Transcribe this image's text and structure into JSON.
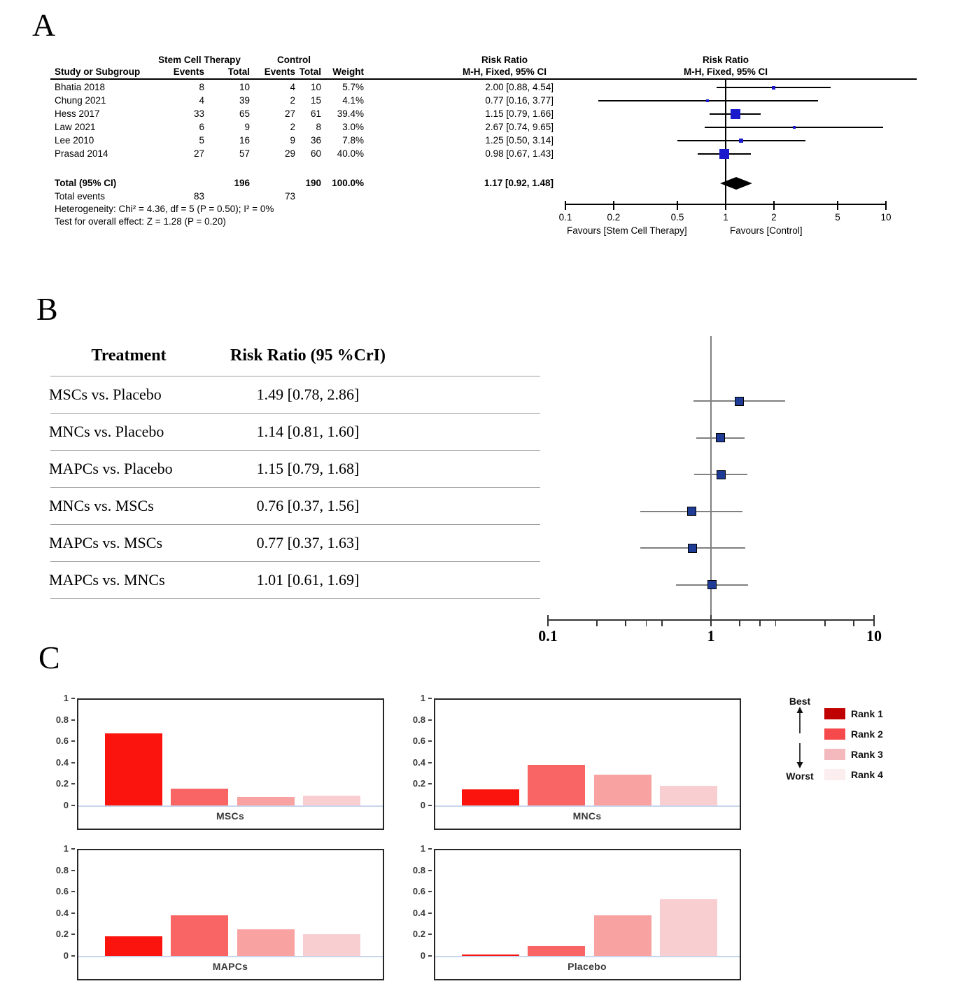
{
  "panelA": {
    "label": "A",
    "headers": {
      "group_treatment": "Stem Cell Therapy",
      "group_control": "Control",
      "risk_ratio": "Risk Ratio",
      "study": "Study or Subgroup",
      "events": "Events",
      "total": "Total",
      "weight": "Weight",
      "method": "M-H, Fixed, 95% CI"
    },
    "studies": [
      {
        "name": "Bhatia 2018",
        "events_t": "8",
        "total_t": "10",
        "events_c": "4",
        "total_c": "10",
        "weight": "5.7%",
        "rr_text": "2.00 [0.88, 4.54]"
      },
      {
        "name": "Chung 2021",
        "events_t": "4",
        "total_t": "39",
        "events_c": "2",
        "total_c": "15",
        "weight": "4.1%",
        "rr_text": "0.77 [0.16, 3.77]"
      },
      {
        "name": "Hess 2017",
        "events_t": "33",
        "total_t": "65",
        "events_c": "27",
        "total_c": "61",
        "weight": "39.4%",
        "rr_text": "1.15 [0.79, 1.66]"
      },
      {
        "name": "Law 2021",
        "events_t": "6",
        "total_t": "9",
        "events_c": "2",
        "total_c": "8",
        "weight": "3.0%",
        "rr_text": "2.67 [0.74, 9.65]"
      },
      {
        "name": "Lee 2010",
        "events_t": "5",
        "total_t": "16",
        "events_c": "9",
        "total_c": "36",
        "weight": "7.8%",
        "rr_text": "1.25 [0.50, 3.14]"
      },
      {
        "name": "Prasad 2014",
        "events_t": "27",
        "total_t": "57",
        "events_c": "29",
        "total_c": "60",
        "weight": "40.0%",
        "rr_text": "0.98 [0.67, 1.43]"
      }
    ],
    "total_row": {
      "label": "Total (95% CI)",
      "total_t": "196",
      "total_c": "190",
      "weight": "100.0%",
      "rr_text": "1.17 [0.92, 1.48]"
    },
    "total_events": {
      "label": "Total events",
      "treatment": "83",
      "control": "73"
    },
    "heterogeneity": "Heterogeneity: Chi² = 4.36, df = 5 (P = 0.50); I² = 0%",
    "overall_effect": "Test for overall effect: Z = 1.28 (P = 0.20)",
    "favours_left": "Favours [Stem Cell Therapy]",
    "favours_right": "Favours [Control]",
    "axis_ticks": [
      {
        "v": 0.1,
        "label": "0.1"
      },
      {
        "v": 0.2,
        "label": "0.2"
      },
      {
        "v": 0.5,
        "label": "0.5"
      },
      {
        "v": 1,
        "label": "1"
      },
      {
        "v": 2,
        "label": "2"
      },
      {
        "v": 5,
        "label": "5"
      },
      {
        "v": 10,
        "label": "10"
      }
    ]
  },
  "panelB": {
    "label": "B",
    "headers": {
      "treatment": "Treatment",
      "risk_ratio": "Risk Ratio (95 %CrI)"
    },
    "rows": [
      {
        "treatment": "MSCs vs. Placebo",
        "text": "1.49 [0.78, 2.86]"
      },
      {
        "treatment": "MNCs vs. Placebo",
        "text": "1.14 [0.81, 1.60]"
      },
      {
        "treatment": "MAPCs vs. Placebo",
        "text": "1.15 [0.79, 1.68]"
      },
      {
        "treatment": "MNCs vs. MSCs",
        "text": "0.76 [0.37, 1.56]"
      },
      {
        "treatment": "MAPCs vs. MSCs",
        "text": "0.77 [0.37, 1.63]"
      },
      {
        "treatment": "MAPCs vs. MNCs",
        "text": "1.01 [0.61, 1.69]"
      }
    ],
    "axis_major": [
      {
        "v": 0.1,
        "label": "0.1"
      },
      {
        "v": 1,
        "label": "1"
      },
      {
        "v": 10,
        "label": "10"
      }
    ],
    "axis_minor": [
      0.2,
      0.3,
      0.4,
      0.5,
      1.5,
      2,
      2.5,
      5,
      7.5
    ]
  },
  "panelC": {
    "label": "C",
    "yticks": [
      {
        "v": 1,
        "label": "1"
      },
      {
        "v": 0.8,
        "label": "0.8"
      },
      {
        "v": 0.6,
        "label": "0.6"
      },
      {
        "v": 0.4,
        "label": "0.4"
      },
      {
        "v": 0.2,
        "label": "0.2"
      },
      {
        "v": 0,
        "label": "0"
      }
    ],
    "bar_colors": [
      "#FB140E",
      "#F96565",
      "#F8A2A2",
      "#F9CED1"
    ],
    "legend": {
      "best": "Best",
      "worst": "Worst",
      "ranks": [
        {
          "label": "Rank 1",
          "color": "#C00000"
        },
        {
          "label": "Rank 2",
          "color": "#F5494B"
        },
        {
          "label": "Rank 3",
          "color": "#F3B9BD"
        },
        {
          "label": "Rank 4",
          "color": "#FCEDEE"
        }
      ]
    }
  },
  "colors": {
    "a_square": "#1A1ACC",
    "b_square": "#1E3C96",
    "b_ci": "#808080",
    "b_axis": "#333333",
    "baseline": "#C9D7EC",
    "rule": "#A0A0A0",
    "frame": "#262626"
  },
  "chart_data": [
    {
      "type": "forest",
      "panel": "A",
      "title": "Risk Ratio",
      "subtitle": "M-H, Fixed, 95% CI",
      "x_scale": "log10",
      "x_ticks": [
        0.1,
        0.2,
        0.5,
        1,
        2,
        5,
        10
      ],
      "studies": [
        {
          "study": "Bhatia 2018",
          "events_t": 8,
          "total_t": 10,
          "events_c": 4,
          "total_c": 10,
          "weight_pct": 5.7,
          "rr": 2.0,
          "ci_low": 0.88,
          "ci_high": 4.54
        },
        {
          "study": "Chung 2021",
          "events_t": 4,
          "total_t": 39,
          "events_c": 2,
          "total_c": 15,
          "weight_pct": 4.1,
          "rr": 0.77,
          "ci_low": 0.16,
          "ci_high": 3.77
        },
        {
          "study": "Hess 2017",
          "events_t": 33,
          "total_t": 65,
          "events_c": 27,
          "total_c": 61,
          "weight_pct": 39.4,
          "rr": 1.15,
          "ci_low": 0.79,
          "ci_high": 1.66
        },
        {
          "study": "Law 2021",
          "events_t": 6,
          "total_t": 9,
          "events_c": 2,
          "total_c": 8,
          "weight_pct": 3.0,
          "rr": 2.67,
          "ci_low": 0.74,
          "ci_high": 9.65
        },
        {
          "study": "Lee 2010",
          "events_t": 5,
          "total_t": 16,
          "events_c": 9,
          "total_c": 36,
          "weight_pct": 7.8,
          "rr": 1.25,
          "ci_low": 0.5,
          "ci_high": 3.14
        },
        {
          "study": "Prasad 2014",
          "events_t": 27,
          "total_t": 57,
          "events_c": 29,
          "total_c": 60,
          "weight_pct": 40.0,
          "rr": 0.98,
          "ci_low": 0.67,
          "ci_high": 1.43
        }
      ],
      "total": {
        "total_t": 196,
        "total_c": 190,
        "weight_pct": 100.0,
        "rr": 1.17,
        "ci_low": 0.92,
        "ci_high": 1.48
      },
      "total_events": {
        "treatment": 83,
        "control": 73
      },
      "heterogeneity": {
        "chi2": 4.36,
        "df": 5,
        "p": 0.5,
        "i2_pct": 0
      },
      "overall_effect": {
        "z": 1.28,
        "p": 0.2
      }
    },
    {
      "type": "forest",
      "panel": "B",
      "x_scale": "log10",
      "x_ticks": [
        0.1,
        1,
        10
      ],
      "rows": [
        {
          "treatment": "MSCs vs. Placebo",
          "rr": 1.49,
          "ci_low": 0.78,
          "ci_high": 2.86
        },
        {
          "treatment": "MNCs vs. Placebo",
          "rr": 1.14,
          "ci_low": 0.81,
          "ci_high": 1.6
        },
        {
          "treatment": "MAPCs vs. Placebo",
          "rr": 1.15,
          "ci_low": 0.79,
          "ci_high": 1.68
        },
        {
          "treatment": "MNCs vs. MSCs",
          "rr": 0.76,
          "ci_low": 0.37,
          "ci_high": 1.56
        },
        {
          "treatment": "MAPCs vs. MSCs",
          "rr": 0.77,
          "ci_low": 0.37,
          "ci_high": 1.63
        },
        {
          "treatment": "MAPCs vs. MNCs",
          "rr": 1.01,
          "ci_low": 0.61,
          "ci_high": 1.69
        }
      ]
    },
    {
      "type": "bar",
      "panel": "C",
      "categories": [
        "Rank 1",
        "Rank 2",
        "Rank 3",
        "Rank 4"
      ],
      "charts": [
        {
          "name": "MSCs",
          "values": [
            0.67,
            0.16,
            0.08,
            0.09
          ]
        },
        {
          "name": "MNCs",
          "values": [
            0.15,
            0.38,
            0.29,
            0.18
          ]
        },
        {
          "name": "MAPCs",
          "values": [
            0.18,
            0.38,
            0.25,
            0.2
          ]
        },
        {
          "name": "Placebo",
          "values": [
            0.01,
            0.09,
            0.38,
            0.53
          ]
        }
      ],
      "ylim": [
        0,
        1
      ],
      "yticks": [
        0,
        0.2,
        0.4,
        0.6,
        0.8,
        1
      ],
      "legend_order": "Best (Rank 1) to Worst (Rank 4)"
    }
  ]
}
